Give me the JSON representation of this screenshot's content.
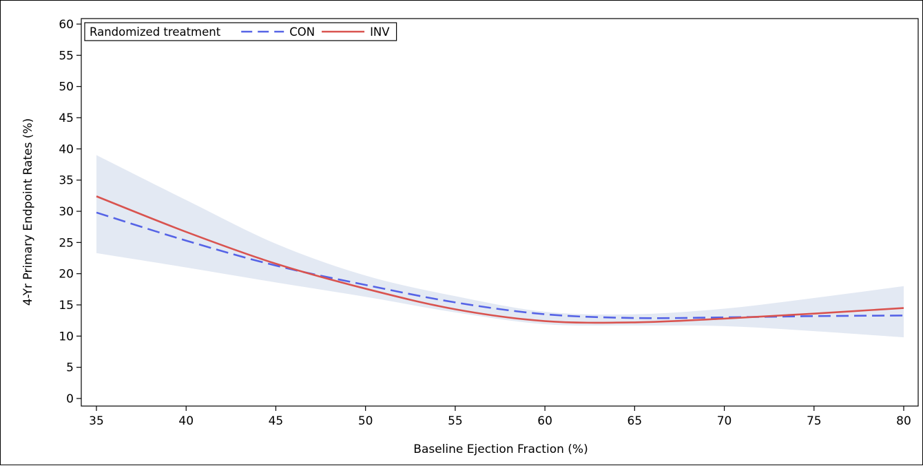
{
  "chart_data": {
    "type": "line",
    "title": "",
    "xlabel": "Baseline Ejection Fraction (%)",
    "ylabel": "4-Yr Primary Endpoint Rates (%)",
    "xlim": [
      35,
      80
    ],
    "ylim": [
      0,
      60
    ],
    "x_ticks": [
      35,
      40,
      45,
      50,
      55,
      60,
      65,
      70,
      75,
      80
    ],
    "y_ticks": [
      0,
      5,
      10,
      15,
      20,
      25,
      30,
      35,
      40,
      45,
      50,
      55,
      60
    ],
    "grid": false,
    "legend": {
      "title": "Randomized treatment",
      "placement": "top-left"
    },
    "series": [
      {
        "name": "CON",
        "color": "#5563e6",
        "style": "dashed",
        "x": [
          35,
          40,
          45,
          50,
          55,
          60,
          65,
          70,
          75,
          80
        ],
        "y": [
          29.8,
          25.3,
          21.3,
          18.2,
          15.4,
          13.5,
          12.9,
          13.0,
          13.2,
          13.3
        ]
      },
      {
        "name": "INV",
        "color": "#d9534f",
        "style": "solid",
        "x": [
          35,
          40,
          45,
          50,
          55,
          60,
          65,
          70,
          75,
          80
        ],
        "y": [
          32.4,
          26.7,
          21.6,
          17.6,
          14.3,
          12.4,
          12.2,
          12.8,
          13.6,
          14.5
        ]
      }
    ],
    "confidence_band": {
      "color": "#e3e9f3",
      "x": [
        35,
        40,
        45,
        50,
        55,
        60,
        65,
        70,
        75,
        80
      ],
      "lower": [
        23.3,
        21.0,
        18.6,
        16.3,
        13.8,
        11.9,
        11.7,
        11.6,
        10.8,
        9.8
      ],
      "upper": [
        39.0,
        31.8,
        24.8,
        19.7,
        16.4,
        13.9,
        13.5,
        14.4,
        16.1,
        18.0
      ]
    }
  }
}
